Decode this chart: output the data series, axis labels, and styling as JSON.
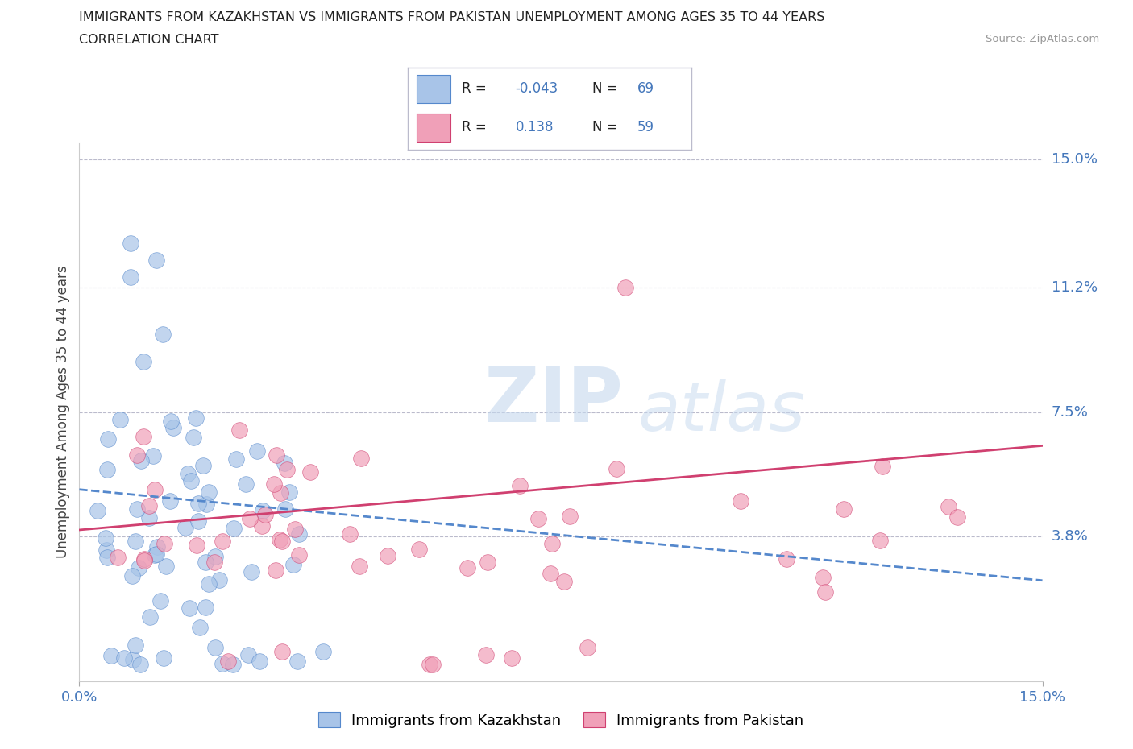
{
  "title_line1": "IMMIGRANTS FROM KAZAKHSTAN VS IMMIGRANTS FROM PAKISTAN UNEMPLOYMENT AMONG AGES 35 TO 44 YEARS",
  "title_line2": "CORRELATION CHART",
  "source_text": "Source: ZipAtlas.com",
  "ylabel": "Unemployment Among Ages 35 to 44 years",
  "xlim": [
    0.0,
    0.15
  ],
  "ylim": [
    -0.005,
    0.155
  ],
  "gridline_y": [
    0.038,
    0.075,
    0.112,
    0.15
  ],
  "kaz_color": "#a8c4e8",
  "pak_color": "#f0a0b8",
  "kaz_line_color": "#5588cc",
  "pak_line_color": "#d04070",
  "kaz_R": -0.043,
  "kaz_N": 69,
  "pak_R": 0.138,
  "pak_N": 59,
  "legend_label_kaz": "Immigrants from Kazakhstan",
  "legend_label_pak": "Immigrants from Pakistan",
  "watermark_zip": "ZIP",
  "watermark_atlas": "atlas",
  "right_ytick_labels": [
    "15.0%",
    "11.2%",
    "7.5%",
    "3.8%"
  ],
  "right_ytick_vals": [
    0.15,
    0.112,
    0.075,
    0.038
  ]
}
